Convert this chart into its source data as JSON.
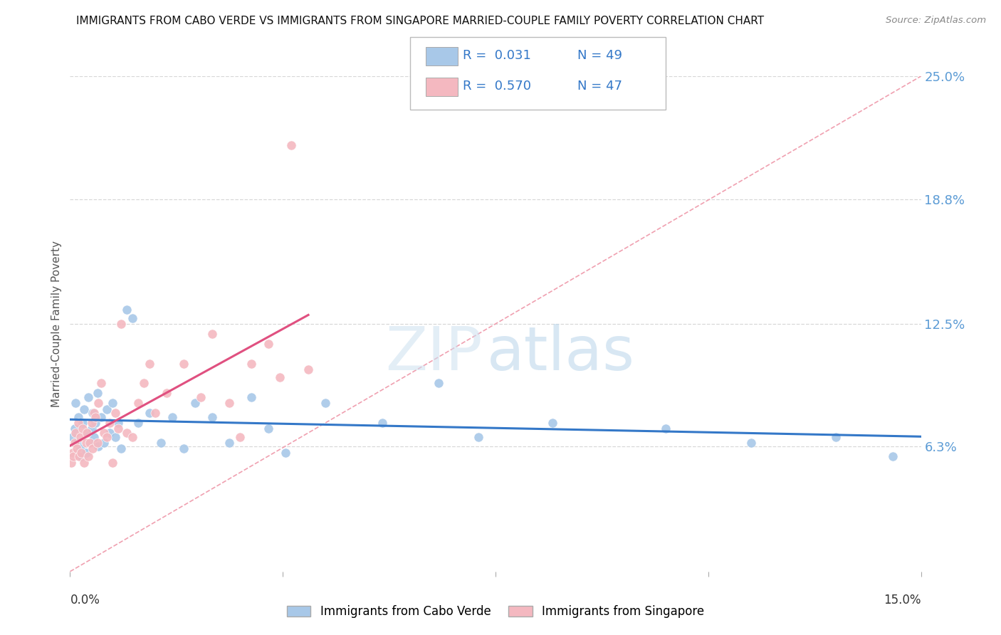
{
  "title": "IMMIGRANTS FROM CABO VERDE VS IMMIGRANTS FROM SINGAPORE MARRIED-COUPLE FAMILY POVERTY CORRELATION CHART",
  "source": "Source: ZipAtlas.com",
  "ylabel_label": "Married-Couple Family Poverty",
  "legend_labels": [
    "Immigrants from Cabo Verde",
    "Immigrants from Singapore"
  ],
  "legend_r": [
    "R =  0.031",
    "R =  0.570"
  ],
  "legend_n": [
    "N = 49",
    "N = 47"
  ],
  "blue_color": "#a8c8e8",
  "pink_color": "#f4b8c0",
  "blue_line_color": "#3478c8",
  "pink_line_color": "#e05080",
  "diag_color": "#f0a0b0",
  "xmin": 0.0,
  "xmax": 15.0,
  "ymin": 0.0,
  "ymax": 25.0,
  "ytick_vals": [
    6.3,
    12.5,
    18.8,
    25.0
  ],
  "ytick_labels": [
    "6.3%",
    "12.5%",
    "18.8%",
    "25.0%"
  ],
  "background_color": "#ffffff",
  "grid_color": "#d8d8d8",
  "blue_dots_x": [
    0.05,
    0.08,
    0.1,
    0.12,
    0.15,
    0.18,
    0.2,
    0.22,
    0.25,
    0.28,
    0.3,
    0.32,
    0.35,
    0.38,
    0.4,
    0.42,
    0.45,
    0.48,
    0.5,
    0.55,
    0.6,
    0.65,
    0.7,
    0.75,
    0.8,
    0.85,
    0.9,
    1.0,
    1.1,
    1.2,
    1.4,
    1.6,
    1.8,
    2.0,
    2.2,
    2.5,
    2.8,
    3.2,
    3.5,
    3.8,
    4.5,
    5.5,
    6.5,
    7.2,
    8.5,
    10.5,
    12.0,
    13.5,
    14.5
  ],
  "blue_dots_y": [
    6.8,
    7.2,
    8.5,
    6.5,
    7.8,
    6.2,
    5.8,
    7.5,
    8.2,
    6.0,
    7.0,
    8.8,
    6.5,
    7.2,
    8.0,
    6.8,
    7.5,
    9.0,
    6.3,
    7.8,
    6.5,
    8.2,
    7.0,
    8.5,
    6.8,
    7.5,
    6.2,
    13.2,
    12.8,
    7.5,
    8.0,
    6.5,
    7.8,
    6.2,
    8.5,
    7.8,
    6.5,
    8.8,
    7.2,
    6.0,
    8.5,
    7.5,
    9.5,
    6.8,
    7.5,
    7.2,
    6.5,
    6.8,
    5.8
  ],
  "pink_dots_x": [
    0.02,
    0.04,
    0.06,
    0.08,
    0.1,
    0.12,
    0.14,
    0.16,
    0.18,
    0.2,
    0.22,
    0.25,
    0.28,
    0.3,
    0.32,
    0.35,
    0.38,
    0.4,
    0.42,
    0.45,
    0.48,
    0.5,
    0.55,
    0.6,
    0.65,
    0.7,
    0.75,
    0.8,
    0.85,
    0.9,
    1.0,
    1.1,
    1.2,
    1.3,
    1.4,
    1.5,
    1.7,
    2.0,
    2.3,
    2.5,
    2.8,
    3.0,
    3.2,
    3.5,
    3.7,
    3.9,
    4.2
  ],
  "pink_dots_y": [
    5.5,
    6.0,
    5.8,
    6.5,
    7.0,
    6.2,
    7.5,
    5.8,
    6.8,
    6.0,
    7.2,
    5.5,
    6.5,
    7.0,
    5.8,
    6.5,
    7.5,
    6.2,
    8.0,
    7.8,
    6.5,
    8.5,
    9.5,
    7.0,
    6.8,
    7.5,
    5.5,
    8.0,
    7.2,
    12.5,
    7.0,
    6.8,
    8.5,
    9.5,
    10.5,
    8.0,
    9.0,
    10.5,
    8.8,
    12.0,
    8.5,
    6.8,
    10.5,
    11.5,
    9.8,
    21.5,
    10.2
  ],
  "watermark_zip": "ZIP",
  "watermark_atlas": "atlas"
}
